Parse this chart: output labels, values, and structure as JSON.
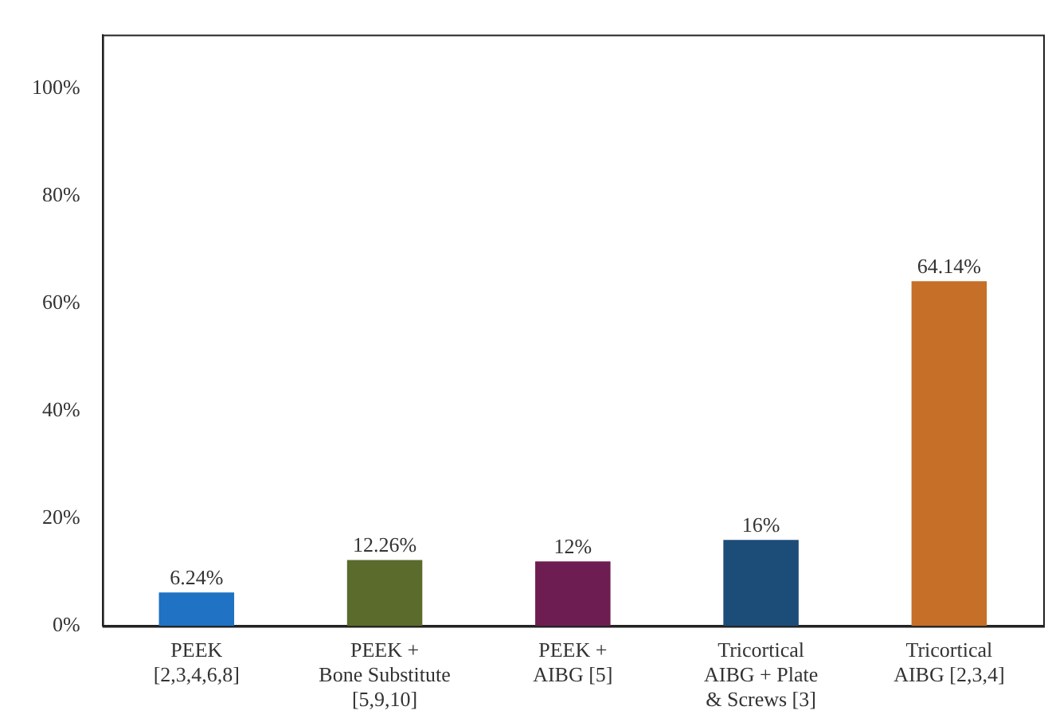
{
  "chart_data": {
    "type": "bar",
    "categories": [
      "PEEK\n[2,3,4,6,8]",
      "PEEK +\nBone Substitute\n[5,9,10]",
      "PEEK +\nAIBG [5]",
      "Tricortical\nAIBG + Plate\n& Screws [3]",
      "Tricortical\nAIBG [2,3,4]"
    ],
    "values": [
      6.24,
      12.26,
      12,
      16,
      64.14
    ],
    "colors": [
      "#1f72c4",
      "#5a6b2c",
      "#6e1d52",
      "#1c4c78",
      "#c56f28"
    ],
    "value_labels": [
      "6.24%",
      "12.26%",
      "12%",
      "16%",
      "64.14%"
    ],
    "ylim": [
      0,
      110
    ],
    "yticks": [
      {
        "value": 0,
        "label": "0%"
      },
      {
        "value": 20,
        "label": "20%"
      },
      {
        "value": 40,
        "label": "40%"
      },
      {
        "value": 60,
        "label": "60%"
      },
      {
        "value": 80,
        "label": "80%"
      },
      {
        "value": 100,
        "label": "100%"
      }
    ],
    "grid": false,
    "legend": false
  }
}
